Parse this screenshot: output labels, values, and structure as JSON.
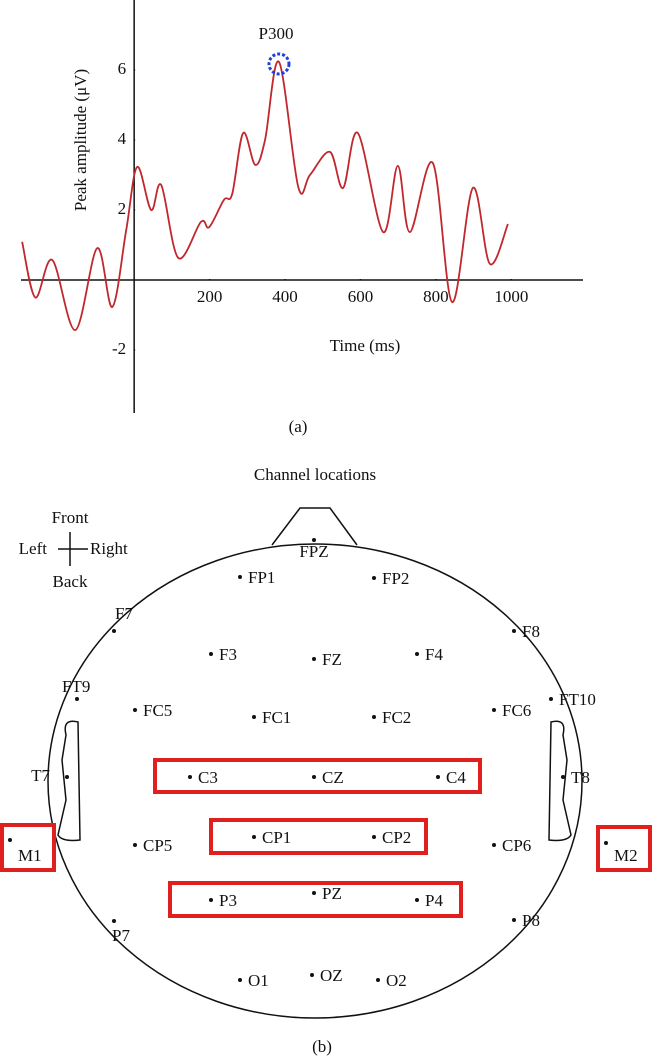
{
  "chart_data": {
    "type": "line",
    "y_label": "Peak amplitude (μV)",
    "x_label": "Time (ms)",
    "annotation": "P300",
    "x": [
      -297,
      -262,
      -217,
      -156,
      -98,
      -58,
      -21,
      8,
      45,
      72,
      117,
      177,
      199,
      238,
      260,
      289,
      321,
      347,
      384,
      435,
      466,
      519,
      554,
      593,
      660,
      699,
      731,
      792,
      843,
      898,
      943,
      991
    ],
    "values": [
      1.09,
      -0.5,
      0.57,
      -1.43,
      0.91,
      -0.77,
      1.43,
      3.23,
      2.0,
      2.71,
      0.63,
      1.66,
      1.51,
      2.29,
      2.46,
      4.2,
      3.29,
      4.0,
      6.23,
      2.66,
      3.0,
      3.66,
      2.63,
      4.2,
      1.37,
      3.26,
      1.37,
      3.34,
      -0.63,
      2.63,
      0.46,
      1.6
    ],
    "color": "#c0282d",
    "xlim": [
      -300,
      1190
    ],
    "ylim": [
      -3.8,
      8
    ],
    "xticks": [
      200,
      400,
      600,
      800,
      1000
    ],
    "yticks": [
      -2,
      2,
      4,
      6
    ],
    "grid": false
  },
  "panel_a_label": "(a)",
  "diagram": {
    "title": "Channel locations",
    "compass": {
      "front": "Front",
      "back": "Back",
      "left": "Left",
      "right": "Right"
    },
    "channels": [
      "FPZ",
      "FP1",
      "FP2",
      "F7",
      "F8",
      "F3",
      "FZ",
      "F4",
      "FT9",
      "FT10",
      "FC5",
      "FC1",
      "FC2",
      "FC6",
      "T7",
      "C3",
      "CZ",
      "C4",
      "T8",
      "M1",
      "M2",
      "CP5",
      "CP1",
      "CP2",
      "CP6",
      "P3",
      "PZ",
      "P4",
      "P7",
      "P8",
      "O1",
      "OZ",
      "O2"
    ]
  },
  "panel_b_label": "(b)"
}
